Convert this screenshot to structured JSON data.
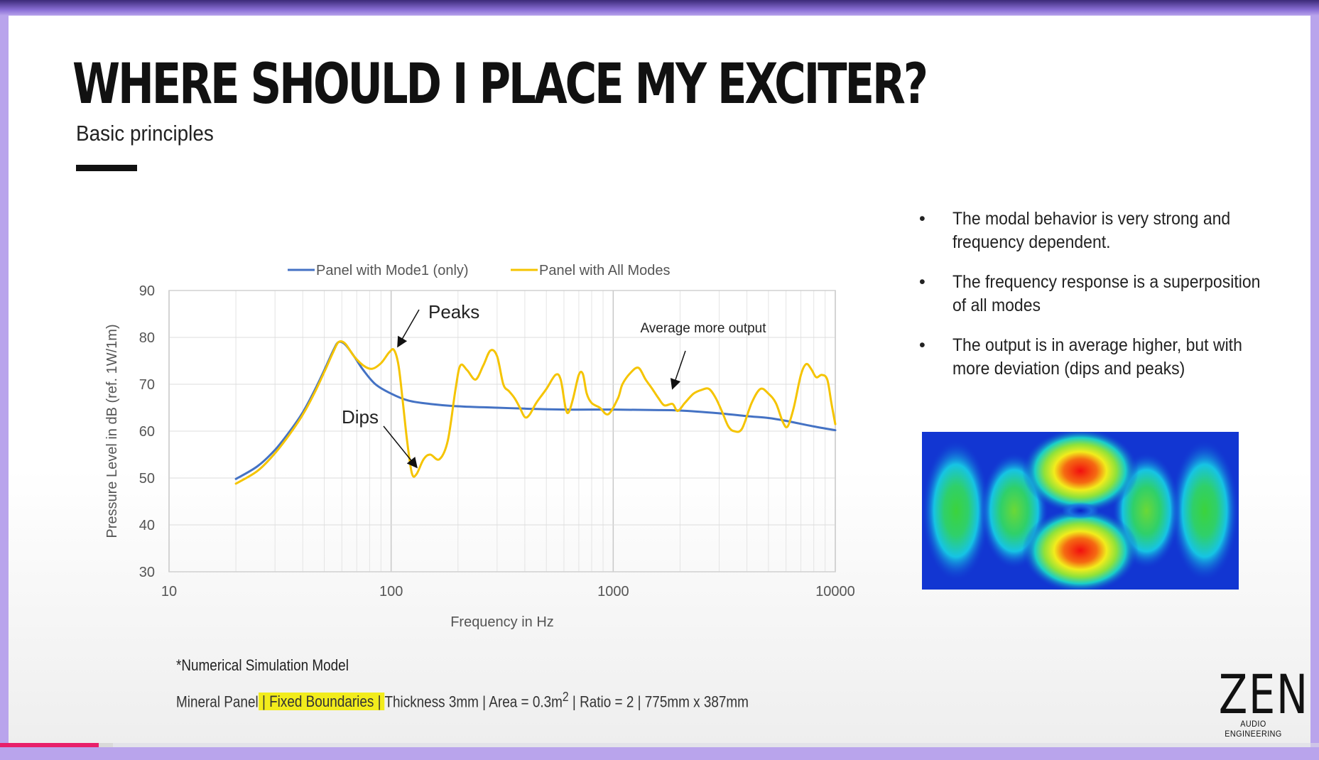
{
  "slide": {
    "title": "WHERE SHOULD I PLACE MY EXCITER?",
    "subtitle": "Basic principles",
    "bullets": [
      "The modal behavior is very strong and frequency dependent.",
      "The frequency response is a superposition of all modes",
      "The output is in average higher, but with more deviation (dips and peaks)"
    ],
    "bullet_glyph": "•",
    "footnote_title": "*Numerical Simulation Model",
    "footnote_specs": {
      "part1": "Mineral Panel",
      "part2": " | Fixed Boundaries | ",
      "part3": "Thickness 3mm | Area = 0.3m",
      "sup": "2",
      "part4": " | Ratio = 2 | 775mm x 387mm"
    },
    "logo": {
      "main": "ZEN",
      "sub": "AUDIO ENGINEERING"
    },
    "colors": {
      "highlight": "#f2ec1c",
      "accent": "#6a4fb5",
      "progress": "#e8206a"
    },
    "progress": 0.075
  },
  "chart_data": {
    "type": "line",
    "xscale": "log",
    "xlim": [
      10,
      10000
    ],
    "ylim": [
      30,
      90
    ],
    "xticks": [
      "10",
      "100",
      "1000",
      "10000"
    ],
    "yticks": [
      "30",
      "40",
      "50",
      "60",
      "70",
      "80",
      "90"
    ],
    "xlabel": "Frequency in Hz",
    "ylabel": "Pressure Level in dB (ref. 1W/1m)",
    "grid": true,
    "legend_position": "top",
    "series": [
      {
        "name": "Panel with Mode1 (only)",
        "color": "#4472c4",
        "points": [
          [
            20,
            49.8
          ],
          [
            25,
            52.5
          ],
          [
            30,
            56
          ],
          [
            35,
            60
          ],
          [
            40,
            64
          ],
          [
            45,
            68.5
          ],
          [
            50,
            73
          ],
          [
            55,
            77.3
          ],
          [
            58,
            79
          ],
          [
            62,
            78.5
          ],
          [
            68,
            76
          ],
          [
            75,
            73
          ],
          [
            85,
            70
          ],
          [
            100,
            68
          ],
          [
            120,
            66.5
          ],
          [
            150,
            65.8
          ],
          [
            200,
            65.3
          ],
          [
            300,
            65
          ],
          [
            400,
            64.8
          ],
          [
            600,
            64.6
          ],
          [
            1000,
            64.6
          ],
          [
            1500,
            64.5
          ],
          [
            2000,
            64.4
          ],
          [
            3000,
            63.8
          ],
          [
            4000,
            63.2
          ],
          [
            5000,
            62.8
          ],
          [
            6000,
            62.2
          ],
          [
            8000,
            61
          ],
          [
            10000,
            60.2
          ]
        ]
      },
      {
        "name": "Panel with All Modes",
        "color": "#f5c400",
        "points": [
          [
            20,
            48.8
          ],
          [
            25,
            51.5
          ],
          [
            30,
            55.3
          ],
          [
            35,
            59.4
          ],
          [
            40,
            63.5
          ],
          [
            45,
            68
          ],
          [
            50,
            72.6
          ],
          [
            55,
            77
          ],
          [
            58,
            79
          ],
          [
            62,
            78.7
          ],
          [
            68,
            76
          ],
          [
            75,
            74
          ],
          [
            82,
            73.3
          ],
          [
            90,
            74.5
          ],
          [
            98,
            76.8
          ],
          [
            103,
            77.3
          ],
          [
            108,
            74
          ],
          [
            113,
            66
          ],
          [
            118,
            58
          ],
          [
            124,
            51
          ],
          [
            130,
            50.8
          ],
          [
            140,
            54
          ],
          [
            150,
            55
          ],
          [
            165,
            54
          ],
          [
            180,
            58
          ],
          [
            195,
            69
          ],
          [
            205,
            74
          ],
          [
            220,
            73
          ],
          [
            240,
            71
          ],
          [
            260,
            74
          ],
          [
            280,
            77.2
          ],
          [
            300,
            76
          ],
          [
            320,
            70
          ],
          [
            340,
            68.5
          ],
          [
            360,
            67
          ],
          [
            380,
            65
          ],
          [
            400,
            63
          ],
          [
            420,
            63.5
          ],
          [
            450,
            66
          ],
          [
            500,
            69
          ],
          [
            550,
            72
          ],
          [
            580,
            71
          ],
          [
            610,
            65
          ],
          [
            630,
            64
          ],
          [
            660,
            67
          ],
          [
            700,
            72
          ],
          [
            730,
            72.2
          ],
          [
            760,
            68
          ],
          [
            800,
            66
          ],
          [
            870,
            65
          ],
          [
            950,
            63.6
          ],
          [
            1050,
            67
          ],
          [
            1100,
            70
          ],
          [
            1200,
            72.5
          ],
          [
            1300,
            73.5
          ],
          [
            1400,
            71
          ],
          [
            1500,
            69
          ],
          [
            1600,
            67
          ],
          [
            1700,
            65.5
          ],
          [
            1850,
            65.8
          ],
          [
            1950,
            64.3
          ],
          [
            2100,
            66
          ],
          [
            2300,
            68
          ],
          [
            2500,
            68.8
          ],
          [
            2700,
            69
          ],
          [
            2900,
            67
          ],
          [
            3100,
            64
          ],
          [
            3300,
            61
          ],
          [
            3500,
            60
          ],
          [
            3800,
            60.5
          ],
          [
            4200,
            66
          ],
          [
            4600,
            69
          ],
          [
            5000,
            68
          ],
          [
            5400,
            66
          ],
          [
            5800,
            62
          ],
          [
            6100,
            61
          ],
          [
            6500,
            65
          ],
          [
            7000,
            72
          ],
          [
            7400,
            74.3
          ],
          [
            7800,
            73.2
          ],
          [
            8200,
            71.5
          ],
          [
            8700,
            72
          ],
          [
            9200,
            71
          ],
          [
            9600,
            66
          ],
          [
            10000,
            61.5
          ]
        ]
      }
    ],
    "annotations": [
      {
        "text": "Peaks",
        "at": [
          103,
          77.3
        ]
      },
      {
        "text": "Dips",
        "at": [
          126,
          51.5
        ]
      },
      {
        "text": "Average more output",
        "at": [
          1800,
          68.5
        ]
      }
    ]
  },
  "heatmap": {
    "colors": [
      "#1236d2",
      "#16c4e4",
      "#2fd06a",
      "#f2ec1c",
      "#f20f0f"
    ]
  }
}
